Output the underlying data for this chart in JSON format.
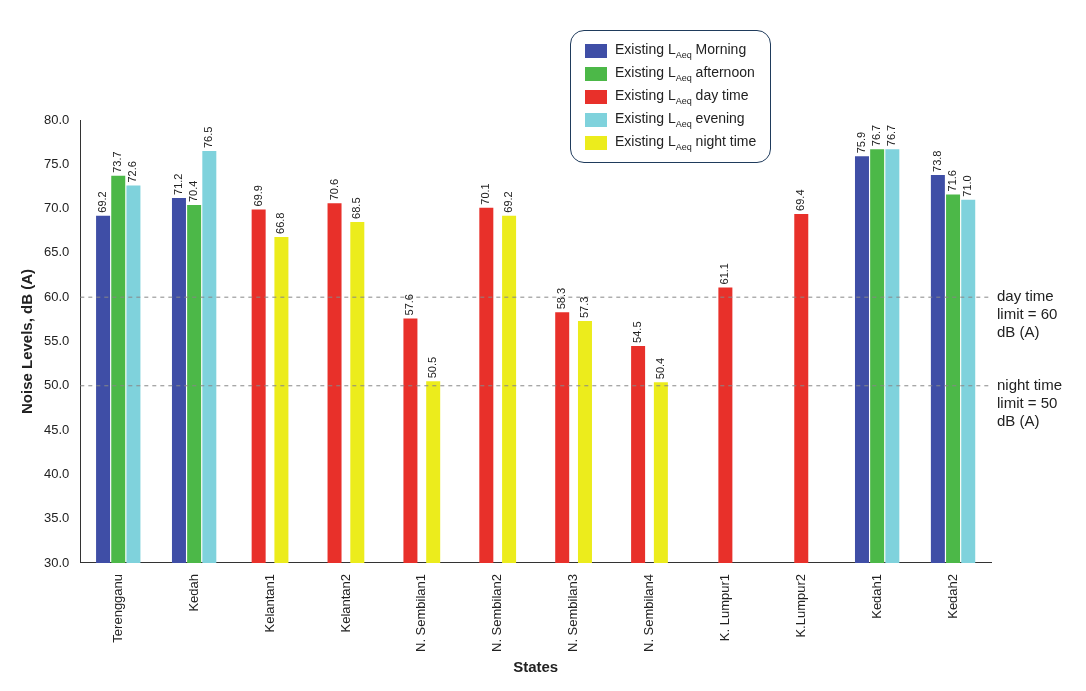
{
  "chart_data": {
    "type": "bar",
    "xlabel": "States",
    "ylabel": "Noise Levels, dB (A)",
    "categories": [
      "Terengganu",
      "Kedah",
      "Kelantan1",
      "Kelantan2",
      "N. Sembilan1",
      "N. Sembilan2",
      "N. Sembilan3",
      "N. Sembilan4",
      "K. Lumpur1",
      "K.Lumpur2",
      "Kedah1",
      "Kedah2"
    ],
    "series": [
      {
        "name": "Existing L$_{Aeq}$ Morning",
        "color": "#3f4ea6",
        "values": [
          69.2,
          71.2,
          null,
          null,
          null,
          null,
          null,
          null,
          null,
          null,
          75.9,
          73.8
        ],
        "value_labels": [
          "69.2",
          "71.2",
          null,
          null,
          null,
          null,
          null,
          null,
          null,
          null,
          "75.9",
          "73.8"
        ]
      },
      {
        "name": "Existing L$_{Aeq}$ afternoon",
        "color": "#4cb848",
        "values": [
          73.7,
          70.4,
          null,
          null,
          null,
          null,
          null,
          null,
          null,
          null,
          76.7,
          71.6
        ],
        "value_labels": [
          "73.7",
          "70.4",
          null,
          null,
          null,
          null,
          null,
          null,
          null,
          null,
          "76.7",
          "71.6"
        ]
      },
      {
        "name": "Existing L$_{Aeq}$ day time",
        "color": "#e8302a",
        "values": [
          null,
          null,
          69.9,
          70.6,
          57.6,
          70.1,
          58.3,
          54.5,
          61.1,
          69.4,
          null,
          null
        ],
        "value_labels": [
          null,
          null,
          "69.9",
          "70.6",
          "57.6",
          "70.1",
          "58.3",
          "54.5",
          "61.1",
          "69.4",
          null,
          null
        ]
      },
      {
        "name": "Existing L$_{Aeq}$ evening",
        "color": "#7fd2dc",
        "values": [
          72.6,
          76.5,
          null,
          null,
          null,
          null,
          null,
          null,
          null,
          null,
          76.7,
          71.0
        ],
        "value_labels": [
          "72.6",
          "76.5",
          null,
          null,
          null,
          null,
          null,
          null,
          null,
          null,
          "76.7",
          "71.0"
        ]
      },
      {
        "name": "Existing L$_{Aeq}$ night time",
        "color": "#ecec1c",
        "values": [
          null,
          null,
          66.8,
          68.5,
          50.5,
          69.2,
          57.3,
          50.4,
          null,
          null,
          null,
          null
        ],
        "value_labels": [
          null,
          null,
          "66.8",
          "68.5",
          "50.5",
          "69.2",
          "57.3",
          "50.4",
          null,
          null,
          null,
          null
        ]
      }
    ],
    "ylim": [
      30,
      80
    ],
    "yticks": [
      {
        "value": 30,
        "label": "30.0"
      },
      {
        "value": 35,
        "label": "35.0"
      },
      {
        "value": 40,
        "label": "40.0"
      },
      {
        "value": 45,
        "label": "45.0"
      },
      {
        "value": 50,
        "label": "50.0"
      },
      {
        "value": 55,
        "label": "55.0"
      },
      {
        "value": 60,
        "label": "60.0"
      },
      {
        "value": 65,
        "label": "65.0"
      },
      {
        "value": 70,
        "label": "70.0"
      },
      {
        "value": 75,
        "label": "75.0"
      },
      {
        "value": 80,
        "label": "80.0"
      }
    ],
    "ref_lines": [
      {
        "axis": "y",
        "value": 60,
        "label": "day time limit = 60 dB (A)",
        "color": "#888888",
        "line_style": "dashed"
      },
      {
        "axis": "y",
        "value": 50,
        "label": "night time limit = 50 dB (A)",
        "color": "#888888",
        "line_style": "dashed"
      }
    ],
    "grid": false,
    "legend": "top right"
  }
}
